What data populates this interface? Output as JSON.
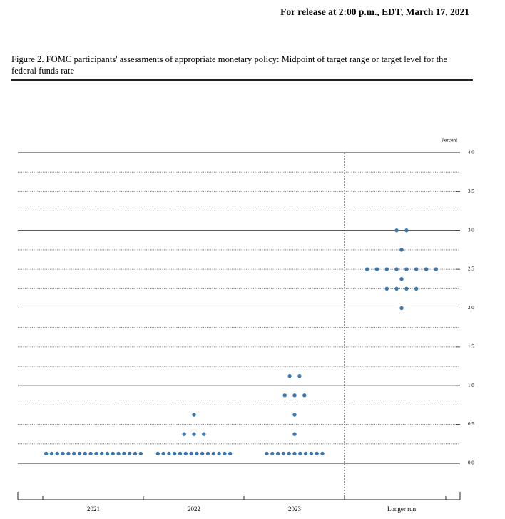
{
  "release": "For release at 2:00 p.m., EDT, March 17, 2021",
  "chart_data": {
    "type": "dotplot",
    "title": "Figure 2.  FOMC participants' assessments of appropriate monetary policy: Midpoint of target range or target level for the federal funds rate",
    "y_label": "Percent",
    "categories": [
      "2021",
      "2022",
      "2023",
      "Longer run"
    ],
    "dots": [
      [
        0.125,
        0.125,
        0.125,
        0.125,
        0.125,
        0.125,
        0.125,
        0.125,
        0.125,
        0.125,
        0.125,
        0.125,
        0.125,
        0.125,
        0.125,
        0.125,
        0.125,
        0.125
      ],
      [
        0.625,
        0.375,
        0.375,
        0.375,
        0.125,
        0.125,
        0.125,
        0.125,
        0.125,
        0.125,
        0.125,
        0.125,
        0.125,
        0.125,
        0.125,
        0.125,
        0.125,
        0.125
      ],
      [
        1.125,
        1.125,
        0.875,
        0.875,
        0.875,
        0.625,
        0.375,
        0.125,
        0.125,
        0.125,
        0.125,
        0.125,
        0.125,
        0.125,
        0.125,
        0.125,
        0.125,
        0.125
      ],
      [
        3.0,
        3.0,
        2.75,
        2.5,
        2.5,
        2.5,
        2.5,
        2.5,
        2.5,
        2.5,
        2.5,
        2.375,
        2.25,
        2.25,
        2.25,
        2.25,
        2.0
      ]
    ],
    "color": "#3c78ae",
    "ylim": [
      -0.4,
      4.0
    ],
    "yticks": [
      {
        "value": 0,
        "label": "0.0"
      },
      0.5,
      {
        "value": 1,
        "label": "1.0"
      },
      1.5,
      {
        "value": 2,
        "label": "2.0"
      },
      2.5,
      {
        "value": 3,
        "label": "3.0"
      },
      3.5,
      {
        "value": 4,
        "label": "4.0"
      }
    ],
    "major_gridlines": [
      0,
      1,
      2,
      3,
      4
    ],
    "minor_gridlines": [
      0.25,
      0.5,
      0.75,
      1.25,
      1.5,
      1.75,
      2.25,
      2.5,
      2.75,
      3.25,
      3.5,
      3.75
    ]
  }
}
